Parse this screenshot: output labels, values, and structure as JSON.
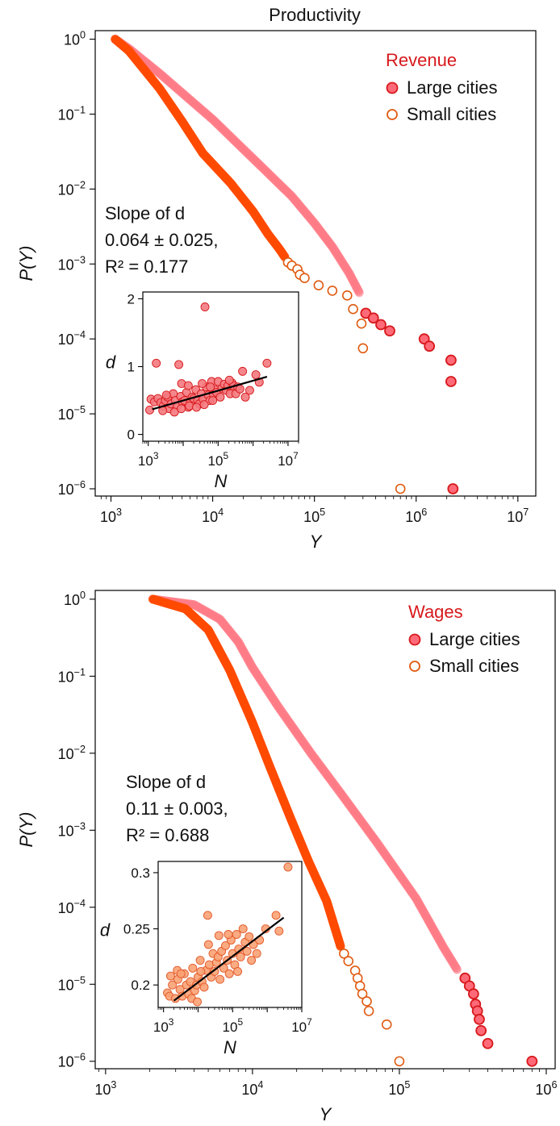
{
  "figure_title": "Productivity",
  "chart_data": [
    {
      "type": "scatter",
      "panel": "top",
      "log_x": true,
      "log_y": true,
      "xlim": [
        700,
        15000000
      ],
      "ylim": [
        8e-07,
        1.3
      ],
      "x_ticks": [
        1000,
        10000,
        100000,
        1000000,
        10000000
      ],
      "x_tick_labels": [
        "10^3",
        "10^4",
        "10^5",
        "10^6",
        "10^7"
      ],
      "y_ticks": [
        1e-06,
        1e-05,
        0.0001,
        0.001,
        0.01,
        0.1,
        1
      ],
      "y_tick_labels": [
        "10^-6",
        "10^-5",
        "10^-4",
        "10^-3",
        "10^-2",
        "10^-1",
        "10^0"
      ],
      "xlabel": "Y",
      "ylabel": "P(Y)",
      "legend": {
        "title": "Revenue",
        "placement": "top-right",
        "entries": [
          "Large cities",
          "Small cities"
        ]
      },
      "annotation": {
        "lines": [
          "Slope of d",
          "0.064 ± 0.025,",
          "R² = 0.177"
        ]
      },
      "series": [
        {
          "name": "Large cities",
          "color": "#ff7b86",
          "edge": "#d7191c",
          "curve": [
            [
              1100,
              1.0
            ],
            [
              1500,
              0.75
            ],
            [
              3000,
              0.35
            ],
            [
              10000,
              0.085
            ],
            [
              30000,
              0.02
            ],
            [
              60000,
              0.008
            ],
            [
              100000,
              0.0035
            ],
            [
              150000,
              0.0017
            ],
            [
              220000,
              0.00075
            ],
            [
              280000,
              0.0004
            ]
          ],
          "points": [
            [
              320000,
              0.00022
            ],
            [
              380000,
              0.00019
            ],
            [
              450000,
              0.000155
            ],
            [
              550000,
              0.000128
            ],
            [
              1200000,
              0.0001
            ],
            [
              1350000,
              8e-05
            ],
            [
              2200000,
              5.2e-05
            ],
            [
              2200000,
              2.7e-05
            ],
            [
              2300000,
              1e-06
            ]
          ]
        },
        {
          "name": "Small cities",
          "color": "#ff4a00",
          "edge": "#ff4a00",
          "curve": [
            [
              1100,
              1.0
            ],
            [
              1500,
              0.7
            ],
            [
              3000,
              0.22
            ],
            [
              5000,
              0.08
            ],
            [
              8000,
              0.03
            ],
            [
              15000,
              0.012
            ],
            [
              25000,
              0.005
            ],
            [
              35000,
              0.0025
            ],
            [
              45000,
              0.0016
            ],
            [
              52000,
              0.0012
            ]
          ],
          "points": [
            [
              55000,
              0.00105
            ],
            [
              60000,
              0.00095
            ],
            [
              68000,
              0.00085
            ],
            [
              72000,
              0.00072
            ],
            [
              80000,
              0.00065
            ],
            [
              110000,
              0.00052
            ],
            [
              150000,
              0.00044
            ],
            [
              210000,
              0.00038
            ],
            [
              240000,
              0.00025
            ],
            [
              290000,
              0.00016
            ],
            [
              300000,
              7.5e-05
            ],
            [
              700000,
              1e-06
            ]
          ]
        }
      ],
      "inset": {
        "type": "scatter",
        "log_x": true,
        "xlim": [
          700,
          20000000
        ],
        "ylim": [
          -0.1,
          2.1
        ],
        "x_ticks": [
          1000,
          100000,
          10000000
        ],
        "x_tick_labels": [
          "10^3",
          "10^5",
          "10^7"
        ],
        "y_ticks": [
          0,
          1,
          2
        ],
        "y_tick_labels": [
          "0",
          "1",
          "2"
        ],
        "xlabel": "N",
        "ylabel": "d",
        "point_color": "#f47a80",
        "point_edge": "#d7191c",
        "fit_line": [
          [
            1300,
            0.37
          ],
          [
            2500000,
            0.85
          ]
        ],
        "points": [
          [
            1200,
            0.52
          ],
          [
            1500,
            0.48
          ],
          [
            1900,
            0.53
          ],
          [
            2300,
            0.47
          ],
          [
            2700,
            0.42
          ],
          [
            3100,
            0.5
          ],
          [
            3600,
            0.55
          ],
          [
            4000,
            0.38
          ],
          [
            4500,
            0.45
          ],
          [
            5200,
            0.6
          ],
          [
            6000,
            0.5
          ],
          [
            6800,
            0.42
          ],
          [
            7500,
            1.03
          ],
          [
            8500,
            0.56
          ],
          [
            9500,
            0.48
          ],
          [
            11000,
            0.5
          ],
          [
            12500,
            0.62
          ],
          [
            14000,
            0.4
          ],
          [
            16000,
            0.47
          ],
          [
            18000,
            0.55
          ],
          [
            20000,
            0.53
          ],
          [
            23000,
            0.66
          ],
          [
            26000,
            0.5
          ],
          [
            29000,
            0.45
          ],
          [
            33000,
            0.6
          ],
          [
            37000,
            0.52
          ],
          [
            42000,
            1.88
          ],
          [
            46000,
            0.7
          ],
          [
            52000,
            0.58
          ],
          [
            58000,
            0.5
          ],
          [
            65000,
            0.78
          ],
          [
            72000,
            0.6
          ],
          [
            80000,
            0.66
          ],
          [
            90000,
            0.62
          ],
          [
            100000,
            0.78
          ],
          [
            115000,
            0.55
          ],
          [
            130000,
            0.68
          ],
          [
            150000,
            0.74
          ],
          [
            170000,
            0.65
          ],
          [
            190000,
            0.72
          ],
          [
            220000,
            0.6
          ],
          [
            250000,
            0.76
          ],
          [
            280000,
            0.72
          ],
          [
            320000,
            0.6
          ],
          [
            360000,
            0.7
          ],
          [
            420000,
            0.67
          ],
          [
            500000,
            0.93
          ],
          [
            600000,
            0.55
          ],
          [
            800000,
            0.65
          ],
          [
            1200000,
            0.88
          ],
          [
            1500000,
            0.77
          ],
          [
            2500000,
            1.05
          ],
          [
            2600,
            0.35
          ],
          [
            5600,
            0.33
          ],
          [
            8800,
            0.38
          ],
          [
            15000,
            0.42
          ],
          [
            24000,
            0.4
          ],
          [
            40000,
            0.44
          ],
          [
            70000,
            0.5
          ],
          [
            1100,
            0.36
          ],
          [
            3300,
            0.58
          ],
          [
            1700,
            1.05
          ],
          [
            9000,
            0.75
          ],
          [
            14000,
            0.72
          ],
          [
            210000,
            0.8
          ],
          [
            60000,
            0.7
          ],
          [
            35000,
            0.75
          ]
        ]
      }
    },
    {
      "type": "scatter",
      "panel": "bottom",
      "log_x": true,
      "log_y": true,
      "xlim": [
        850,
        1150000
      ],
      "ylim": [
        8e-07,
        1.3
      ],
      "x_ticks": [
        1000,
        10000,
        100000,
        1000000
      ],
      "x_tick_labels": [
        "10^3",
        "10^4",
        "10^5",
        "10^6"
      ],
      "y_ticks": [
        1e-06,
        1e-05,
        0.0001,
        0.001,
        0.01,
        0.1,
        1
      ],
      "y_tick_labels": [
        "10^-6",
        "10^-5",
        "10^-4",
        "10^-3",
        "10^-2",
        "10^-1",
        "10^0"
      ],
      "xlabel": "Y",
      "ylabel": "P(Y)",
      "legend": {
        "title": "Wages",
        "placement": "top-right",
        "entries": [
          "Large cities",
          "Small cities"
        ]
      },
      "annotation": {
        "lines": [
          "Slope of d",
          "0.11 ± 0.003,",
          "R² = 0.688"
        ]
      },
      "series": [
        {
          "name": "Large cities",
          "color": "#ff7b86",
          "edge": "#d7191c",
          "curve": [
            [
              2100,
              1.0
            ],
            [
              4000,
              0.85
            ],
            [
              6000,
              0.55
            ],
            [
              8000,
              0.28
            ],
            [
              10000,
              0.13
            ],
            [
              15000,
              0.04
            ],
            [
              25000,
              0.01
            ],
            [
              40000,
              0.003
            ],
            [
              70000,
              0.0007
            ],
            [
              130000,
              0.00013
            ],
            [
              200000,
              3e-05
            ],
            [
              250000,
              1.5e-05
            ]
          ],
          "points": [
            [
              280000,
              1.2e-05
            ],
            [
              300000,
              9.5e-06
            ],
            [
              320000,
              7.5e-06
            ],
            [
              330000,
              5.5e-06
            ],
            [
              340000,
              4.5e-06
            ],
            [
              350000,
              3.5e-06
            ],
            [
              360000,
              2.5e-06
            ],
            [
              400000,
              1.7e-06
            ],
            [
              800000,
              1e-06
            ]
          ]
        },
        {
          "name": "Small cities",
          "color": "#ff4a00",
          "edge": "#ff4a00",
          "curve": [
            [
              2100,
              1.0
            ],
            [
              3500,
              0.75
            ],
            [
              5000,
              0.4
            ],
            [
              7000,
              0.12
            ],
            [
              10000,
              0.025
            ],
            [
              13000,
              0.007
            ],
            [
              18000,
              0.0015
            ],
            [
              24000,
              0.0004
            ],
            [
              32000,
              0.00012
            ],
            [
              40000,
              3e-05
            ]
          ],
          "points": [
            [
              42000,
              2.5e-05
            ],
            [
              45000,
              2e-05
            ],
            [
              50000,
              1.5e-05
            ],
            [
              52000,
              1.2e-05
            ],
            [
              54000,
              9.5e-06
            ],
            [
              56000,
              7.5e-06
            ],
            [
              60000,
              6e-06
            ],
            [
              62000,
              4.5e-06
            ],
            [
              82000,
              3e-06
            ],
            [
              100000,
              1e-06
            ]
          ]
        }
      ],
      "inset": {
        "type": "scatter",
        "log_x": true,
        "xlim": [
          700,
          10000000
        ],
        "ylim": [
          0.18,
          0.31
        ],
        "x_ticks": [
          1000,
          100000,
          10000000
        ],
        "x_tick_labels": [
          "10^3",
          "10^5",
          "10^7"
        ],
        "y_ticks": [
          0.2,
          0.25,
          0.3
        ],
        "y_tick_labels": [
          "0.2",
          "0.25",
          "0.3"
        ],
        "xlabel": "N",
        "ylabel": "d",
        "point_color": "#f9a274",
        "point_edge": "#e3592a",
        "fit_line": [
          [
            2000,
            0.186
          ],
          [
            3000000,
            0.26
          ]
        ],
        "points": [
          [
            1300,
            0.193
          ],
          [
            1500,
            0.19
          ],
          [
            1800,
            0.2
          ],
          [
            2200,
            0.188
          ],
          [
            2600,
            0.205
          ],
          [
            3000,
            0.196
          ],
          [
            3500,
            0.19
          ],
          [
            4000,
            0.21
          ],
          [
            4600,
            0.2
          ],
          [
            5300,
            0.192
          ],
          [
            6000,
            0.203
          ],
          [
            7000,
            0.215
          ],
          [
            8000,
            0.195
          ],
          [
            9000,
            0.2
          ],
          [
            10000,
            0.207
          ],
          [
            11500,
            0.222
          ],
          [
            13000,
            0.203
          ],
          [
            15000,
            0.198
          ],
          [
            17000,
            0.213
          ],
          [
            19000,
            0.262
          ],
          [
            21000,
            0.218
          ],
          [
            24000,
            0.207
          ],
          [
            27000,
            0.228
          ],
          [
            30000,
            0.212
          ],
          [
            34000,
            0.22
          ],
          [
            38000,
            0.225
          ],
          [
            43000,
            0.205
          ],
          [
            48000,
            0.23
          ],
          [
            55000,
            0.215
          ],
          [
            62000,
            0.235
          ],
          [
            70000,
            0.222
          ],
          [
            80000,
            0.21
          ],
          [
            90000,
            0.24
          ],
          [
            100000,
            0.228
          ],
          [
            115000,
            0.218
          ],
          [
            130000,
            0.245
          ],
          [
            150000,
            0.232
          ],
          [
            170000,
            0.225
          ],
          [
            200000,
            0.25
          ],
          [
            230000,
            0.238
          ],
          [
            260000,
            0.23
          ],
          [
            300000,
            0.243
          ],
          [
            400000,
            0.236
          ],
          [
            500000,
            0.228
          ],
          [
            600000,
            0.24
          ],
          [
            1800000,
            0.262
          ],
          [
            2200000,
            0.248
          ],
          [
            4000000,
            0.305
          ],
          [
            2500,
            0.213
          ],
          [
            6500,
            0.188
          ],
          [
            12000,
            0.212
          ],
          [
            20000,
            0.236
          ],
          [
            40000,
            0.244
          ],
          [
            75000,
            0.245
          ],
          [
            140000,
            0.212
          ],
          [
            3200,
            0.21
          ],
          [
            900000,
            0.25
          ],
          [
            350000,
            0.222
          ],
          [
            9500,
            0.185
          ],
          [
            1600,
            0.208
          ]
        ]
      }
    }
  ]
}
